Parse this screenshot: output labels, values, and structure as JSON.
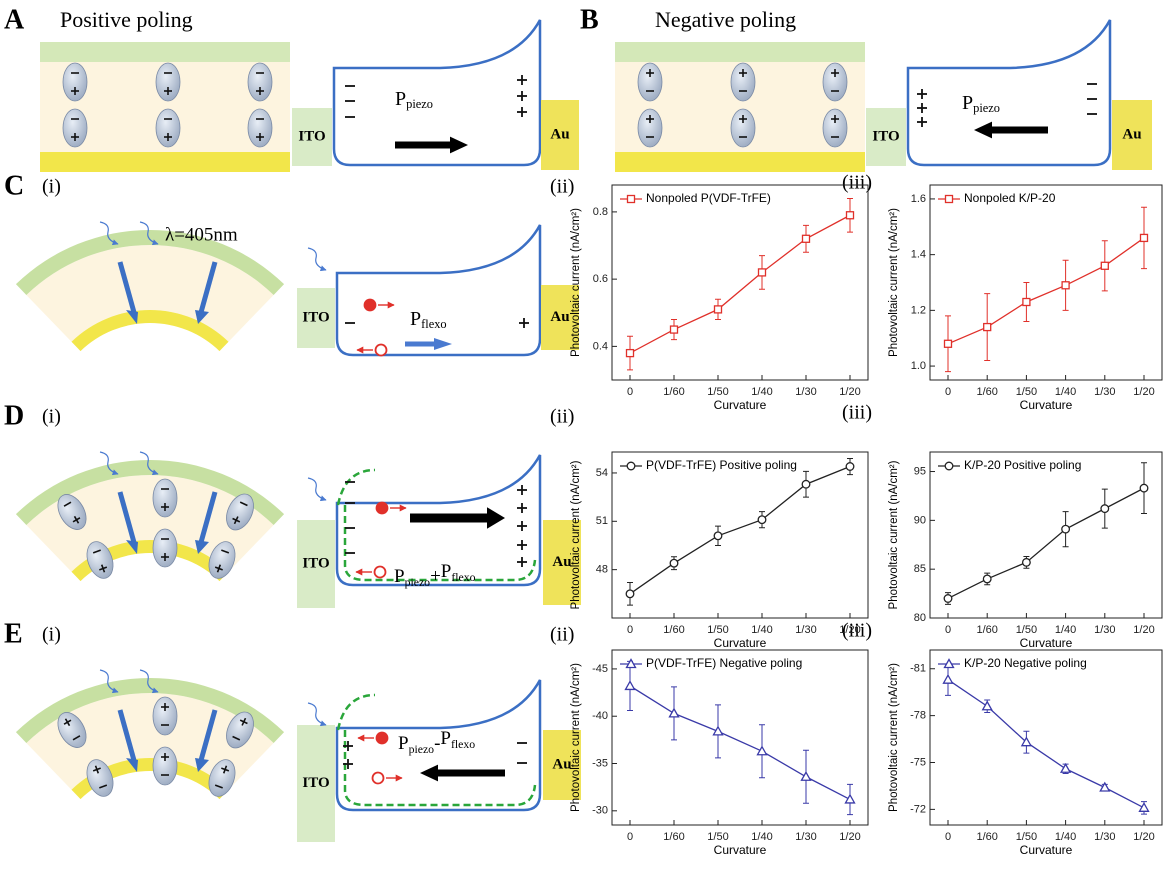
{
  "figure": {
    "panels": {
      "A": {
        "label": "A",
        "title": "Positive poling"
      },
      "B": {
        "label": "B",
        "title": "Negative poling"
      },
      "C": {
        "label": "C"
      },
      "D": {
        "label": "D"
      },
      "E": {
        "label": "E"
      }
    },
    "sublabels": [
      "(i)",
      "(ii)",
      "(iii)"
    ],
    "ito": "ITO",
    "au": "Au",
    "p": "P",
    "piezo": "piezo",
    "flexo": "flexo",
    "plus": "+",
    "minus": "-",
    "wavelength": "λ=405nm"
  },
  "chart_data": [
    {
      "type": "line",
      "xlabel": "Curvature",
      "ylabel": "Photovoltaic current (nA/cm²)",
      "categories": [
        "0",
        "1/60",
        "1/50",
        "1/40",
        "1/30",
        "1/20"
      ],
      "series": [
        {
          "name": "Nonpoled P(VDF-TrFE)",
          "color": "#e0302a",
          "marker": "square",
          "values": [
            0.38,
            0.45,
            0.51,
            0.62,
            0.72,
            0.79
          ],
          "errors": [
            0.05,
            0.03,
            0.03,
            0.05,
            0.04,
            0.05
          ]
        }
      ],
      "ylim": [
        0.3,
        0.88
      ],
      "yticks": [
        0.4,
        0.6,
        0.8
      ]
    },
    {
      "type": "line",
      "xlabel": "Curvature",
      "ylabel": "Photovoltaic current (nA/cm²)",
      "categories": [
        "0",
        "1/60",
        "1/50",
        "1/40",
        "1/30",
        "1/20"
      ],
      "series": [
        {
          "name": "Nonpoled K/P-20",
          "color": "#e0302a",
          "marker": "square",
          "values": [
            1.08,
            1.14,
            1.23,
            1.29,
            1.36,
            1.46
          ],
          "errors": [
            0.1,
            0.12,
            0.07,
            0.09,
            0.09,
            0.11
          ]
        }
      ],
      "ylim": [
        0.95,
        1.65
      ],
      "yticks": [
        {
          "value": 1,
          "label": "1.0"
        },
        1.2,
        1.4,
        1.6
      ]
    },
    {
      "type": "line",
      "xlabel": "Curvature",
      "ylabel": "Photovoltaic current (nA/cm²)",
      "categories": [
        "0",
        "1/60",
        "1/50",
        "1/40",
        "1/30",
        "1/20"
      ],
      "series": [
        {
          "name": "P(VDF-TrFE) Positive poling",
          "color": "#222222",
          "marker": "circle",
          "values": [
            46.5,
            48.4,
            50.1,
            51.1,
            53.3,
            54.4
          ],
          "errors": [
            0.7,
            0.4,
            0.6,
            0.5,
            0.8,
            0.5
          ]
        }
      ],
      "ylim": [
        45,
        55.3
      ],
      "yticks": [
        48,
        51,
        54
      ]
    },
    {
      "type": "line",
      "xlabel": "Curvature",
      "ylabel": "Photovoltaic current (nA/cm²)",
      "categories": [
        "0",
        "1/60",
        "1/50",
        "1/40",
        "1/30",
        "1/20"
      ],
      "series": [
        {
          "name": "K/P-20 Positive poling",
          "color": "#222222",
          "marker": "circle",
          "values": [
            82,
            84,
            85.7,
            89.1,
            91.2,
            93.3
          ],
          "errors": [
            0.6,
            0.6,
            0.6,
            1.8,
            2,
            2.6
          ]
        }
      ],
      "ylim": [
        80,
        97
      ],
      "yticks": [
        80,
        85,
        90,
        95
      ]
    },
    {
      "type": "line",
      "xlabel": "Curvature",
      "ylabel": "Photovoltaic current (nA/cm²)",
      "categories": [
        "0",
        "1/60",
        "1/50",
        "1/40",
        "1/30",
        "1/20"
      ],
      "series": [
        {
          "name": "P(VDF-TrFE) Negative poling",
          "color": "#3a3aa8",
          "marker": "triangle",
          "values": [
            -43.2,
            -40.3,
            -38.4,
            -36.3,
            -33.6,
            -31.2
          ],
          "errors": [
            2.6,
            2.8,
            2.8,
            2.8,
            2.8,
            1.6
          ]
        }
      ],
      "ylim": [
        -28.5,
        -47
      ],
      "yticks": [
        -45,
        -40,
        -35,
        -30
      ]
    },
    {
      "type": "line",
      "xlabel": "Curvature",
      "ylabel": "Photovoltaic current (nA/cm²)",
      "categories": [
        "0",
        "1/60",
        "1/50",
        "1/40",
        "1/30",
        "1/20"
      ],
      "series": [
        {
          "name": "K/P-20 Negative poling",
          "color": "#3a3aa8",
          "marker": "triangle",
          "values": [
            -80.3,
            -78.6,
            -76.3,
            -74.6,
            -73.4,
            -72.1
          ],
          "errors": [
            1,
            0.4,
            0.7,
            0.3,
            0.2,
            0.4
          ]
        }
      ],
      "ylim": [
        -71,
        -82.2
      ],
      "yticks": [
        -81,
        -78,
        -75,
        -72
      ]
    }
  ]
}
